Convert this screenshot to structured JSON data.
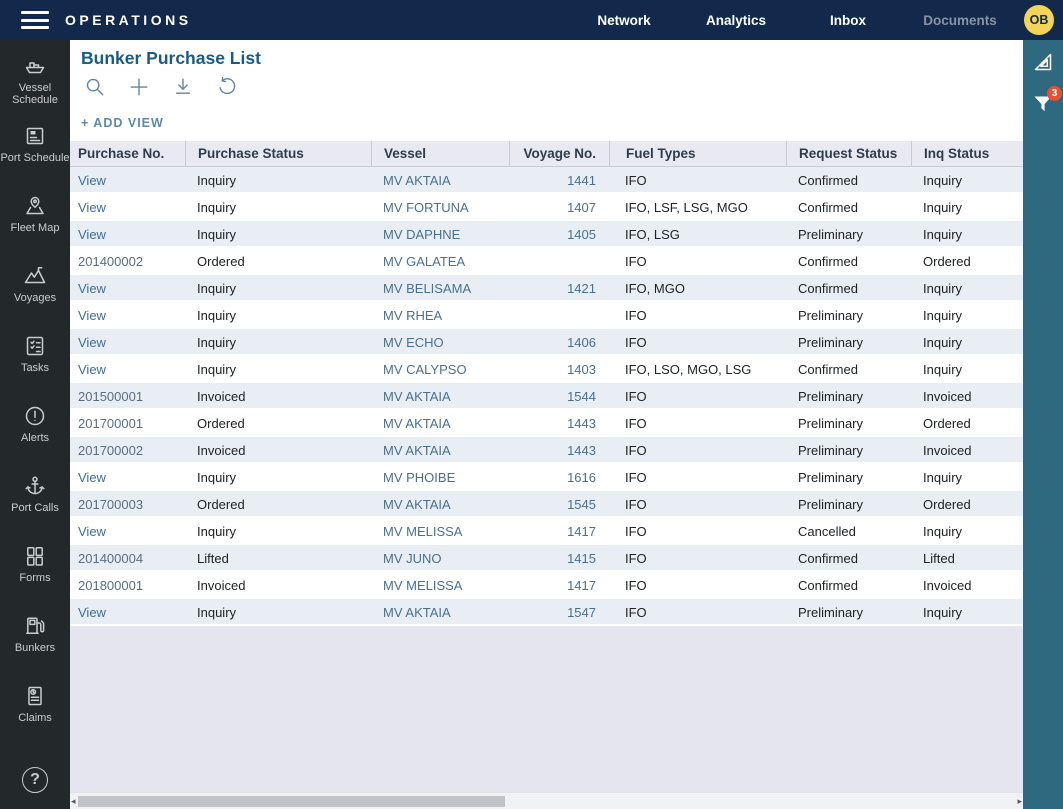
{
  "colors": {
    "navbar_bg": "#13294b",
    "sidebar_bg": "#23282b",
    "panel_teal": "#2f6980",
    "accent_title": "#1a5c84",
    "link_blue": "#3f6e95",
    "steel_blue": "#49708f",
    "header_row_bg": "#e8e9f1",
    "alt_row_bg": "#e9eef4",
    "empty_bg": "#e4e5ef",
    "badge_orange": "#e8502f",
    "avatar_yellow": "#f2d458"
  },
  "navbar": {
    "brand": "OPERATIONS",
    "items": [
      {
        "label": "Network",
        "disabled": false
      },
      {
        "label": "Analytics",
        "disabled": false
      },
      {
        "label": "Inbox",
        "disabled": false
      },
      {
        "label": "Documents",
        "disabled": true
      }
    ],
    "avatar_initials": "OB"
  },
  "sidebar": {
    "items": [
      {
        "label": "Vessel Schedule",
        "icon": "ship-icon"
      },
      {
        "label": "Port Schedule",
        "icon": "port-schedule-icon"
      },
      {
        "label": "Fleet Map",
        "icon": "fleet-map-icon"
      },
      {
        "label": "Voyages",
        "icon": "voyages-icon"
      },
      {
        "label": "Tasks",
        "icon": "tasks-icon"
      },
      {
        "label": "Alerts",
        "icon": "alerts-icon"
      },
      {
        "label": "Port Calls",
        "icon": "anchor-icon"
      },
      {
        "label": "Forms",
        "icon": "forms-icon"
      },
      {
        "label": "Bunkers",
        "icon": "fuel-pump-icon"
      },
      {
        "label": "Claims",
        "icon": "claims-icon"
      }
    ],
    "help_label": "?"
  },
  "page": {
    "title": "Bunker Purchase List",
    "add_view_label": "+ ADD VIEW",
    "toolbar": [
      {
        "name": "search-icon"
      },
      {
        "name": "add-icon"
      },
      {
        "name": "download-icon"
      },
      {
        "name": "reset-icon"
      }
    ]
  },
  "table": {
    "columns": [
      "Purchase No.",
      "Purchase Status",
      "Vessel",
      "Voyage No.",
      "Fuel Types",
      "Request Status",
      "Inq Status"
    ],
    "rows": [
      [
        "View",
        "Inquiry",
        "MV AKTAIA",
        "1441",
        "IFO",
        "Confirmed",
        "Inquiry"
      ],
      [
        "View",
        "Inquiry",
        "MV FORTUNA",
        "1407",
        "IFO, LSF, LSG, MGO",
        "Confirmed",
        "Inquiry"
      ],
      [
        "View",
        "Inquiry",
        "MV DAPHNE",
        "1405",
        "IFO, LSG",
        "Preliminary",
        "Inquiry"
      ],
      [
        "201400002",
        "Ordered",
        "MV GALATEA",
        "",
        "IFO",
        "Confirmed",
        "Ordered"
      ],
      [
        "View",
        "Inquiry",
        "MV BELISAMA",
        "1421",
        "IFO, MGO",
        "Confirmed",
        "Inquiry"
      ],
      [
        "View",
        "Inquiry",
        "MV RHEA",
        "",
        "IFO",
        "Preliminary",
        "Inquiry"
      ],
      [
        "View",
        "Inquiry",
        "MV ECHO",
        "1406",
        "IFO",
        "Preliminary",
        "Inquiry"
      ],
      [
        "View",
        "Inquiry",
        "MV CALYPSO",
        "1403",
        "IFO, LSO, MGO, LSG",
        "Confirmed",
        "Inquiry"
      ],
      [
        "201500001",
        "Invoiced",
        "MV AKTAIA",
        "1544",
        "IFO",
        "Preliminary",
        "Invoiced"
      ],
      [
        "201700001",
        "Ordered",
        "MV AKTAIA",
        "1443",
        "IFO",
        "Preliminary",
        "Ordered"
      ],
      [
        "201700002",
        "Invoiced",
        "MV AKTAIA",
        "1443",
        "IFO",
        "Preliminary",
        "Invoiced"
      ],
      [
        "View",
        "Inquiry",
        "MV PHOIBE",
        "1616",
        "IFO",
        "Preliminary",
        "Inquiry"
      ],
      [
        "201700003",
        "Ordered",
        "MV AKTAIA",
        "1545",
        "IFO",
        "Preliminary",
        "Ordered"
      ],
      [
        "View",
        "Inquiry",
        "MV MELISSA",
        "1417",
        "IFO",
        "Cancelled",
        "Inquiry"
      ],
      [
        "201400004",
        "Lifted",
        "MV JUNO",
        "1415",
        "IFO",
        "Confirmed",
        "Lifted"
      ],
      [
        "201800001",
        "Invoiced",
        "MV MELISSA",
        "1417",
        "IFO",
        "Confirmed",
        "Invoiced"
      ],
      [
        "View",
        "Inquiry",
        "MV AKTAIA",
        "1547",
        "IFO",
        "Preliminary",
        "Inquiry"
      ]
    ]
  },
  "right_panel": {
    "icons": [
      {
        "name": "cursor-icon",
        "badge": ""
      },
      {
        "name": "filter-icon",
        "badge": "3"
      }
    ]
  }
}
